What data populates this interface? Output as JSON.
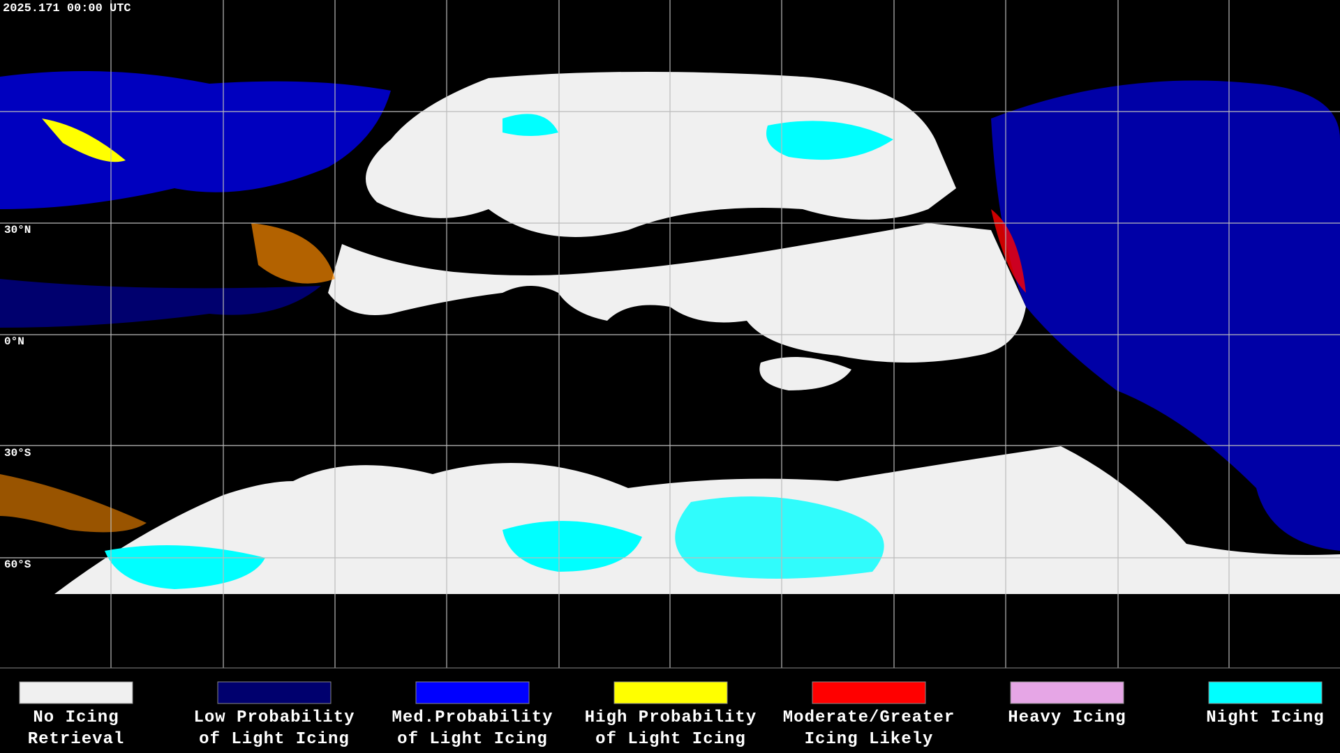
{
  "header": {
    "timestamp": "2025.171 00:00 UTC"
  },
  "map": {
    "latitude_labels": [
      "30°N",
      "0°N",
      "30°S",
      "60°S"
    ]
  },
  "legend": {
    "items": [
      {
        "color": "#f0f0f0",
        "label": [
          "No Icing",
          "Retrieval"
        ]
      },
      {
        "color": "#00006e",
        "label": [
          "Low Probability",
          "of Light Icing"
        ]
      },
      {
        "color": "#0000ff",
        "label": [
          "Med.Probability",
          "of Light Icing"
        ]
      },
      {
        "color": "#ffff00",
        "label": [
          "High Probability",
          "of Light Icing"
        ]
      },
      {
        "color": "#ff0000",
        "label": [
          "Moderate/Greater",
          "Icing Likely"
        ]
      },
      {
        "color": "#e6a6e6",
        "label": [
          "Heavy Icing"
        ]
      },
      {
        "color": "#00ffff",
        "label": [
          "Night Icing"
        ]
      }
    ]
  }
}
